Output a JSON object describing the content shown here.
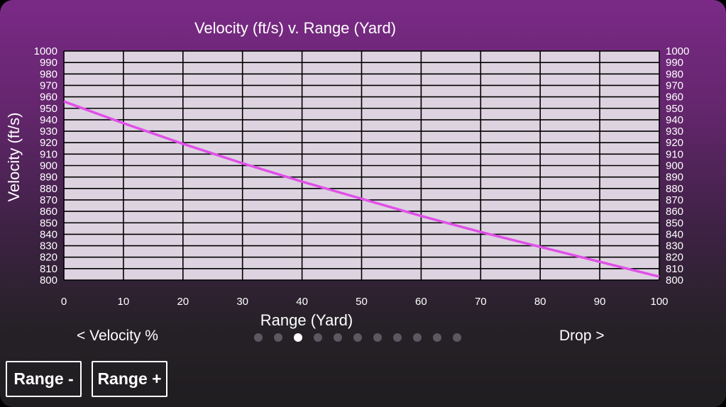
{
  "chart_data": {
    "type": "line",
    "title": "Velocity (ft/s) v. Range (Yard)",
    "xlabel": "Range (Yard)",
    "ylabel": "Velocity (ft/s)",
    "xlim": [
      0,
      100
    ],
    "ylim": [
      800,
      1000
    ],
    "x_ticks": [
      0,
      10,
      20,
      30,
      40,
      50,
      60,
      70,
      80,
      90,
      100
    ],
    "y_ticks": [
      800,
      810,
      820,
      830,
      840,
      850,
      860,
      870,
      880,
      890,
      900,
      910,
      920,
      930,
      940,
      950,
      960,
      970,
      980,
      990,
      1000
    ],
    "grid": true,
    "right_axis_labels": true,
    "series": [
      {
        "color": "#e050e8",
        "x": [
          0,
          10,
          20,
          30,
          40,
          50,
          60,
          70,
          80,
          90,
          100
        ],
        "y": [
          956,
          937,
          919,
          902,
          886,
          871,
          856,
          842,
          829,
          816,
          803
        ]
      }
    ],
    "plot_background": "#ddd3e0",
    "grid_color": "#000000"
  },
  "nav": {
    "left_label": "< Velocity %",
    "right_label": "Drop >",
    "page_count": 11,
    "active_page": 2
  },
  "buttons": {
    "range_minus": "Range -",
    "range_plus": "Range +"
  }
}
